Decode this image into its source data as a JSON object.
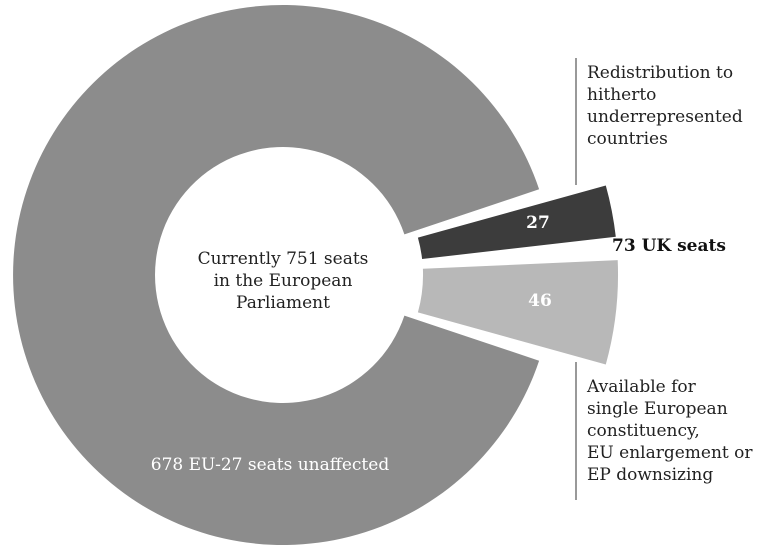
{
  "chart_data": {
    "type": "pie",
    "style": "donut-exploded",
    "total": 751,
    "center_label": "Currently 751 seats\nin the European\nParliament",
    "slices": [
      {
        "label": "678 EU-27 seats unaffected",
        "value": 678,
        "color": "#8c8c8c"
      },
      {
        "label": "27",
        "value": 27,
        "color": "#3c3c3c",
        "note": "Redistribution to\nhitherto\nunderrepresented\ncountries"
      },
      {
        "label": "46",
        "value": 46,
        "color": "#b8b8b8",
        "note": "Available for\nsingle European\nconstituency,\nEU enlargement or\nEP downsizing"
      }
    ],
    "group_label": "73 UK seats",
    "group_value": 73
  }
}
